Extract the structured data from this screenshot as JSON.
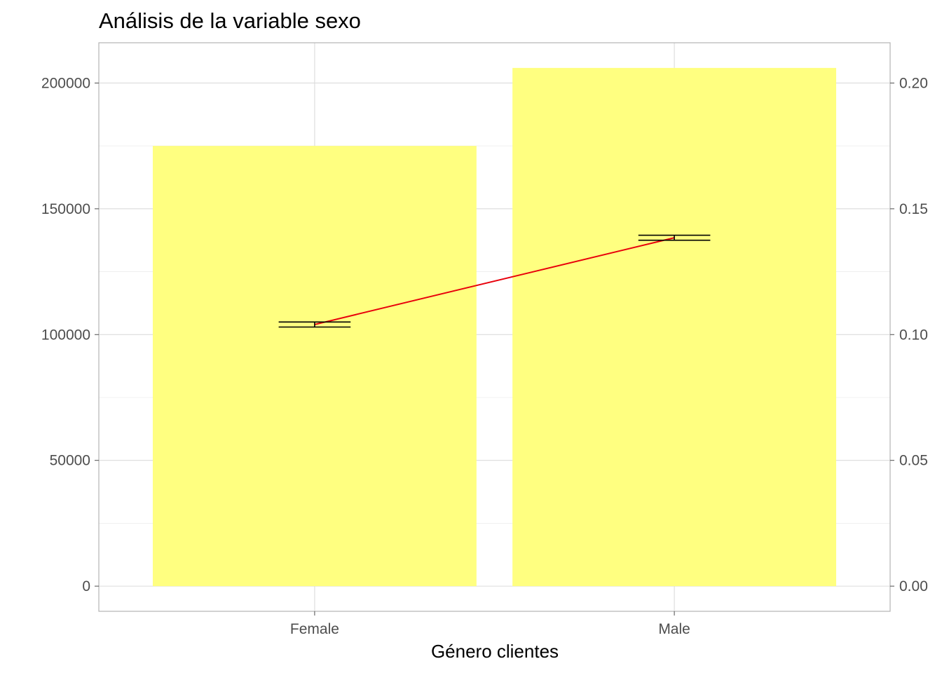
{
  "chart_data": {
    "type": "bar",
    "title": "Análisis de la variable sexo",
    "xlabel": "Género clientes",
    "ylabel": "",
    "categories": [
      "Female",
      "Male"
    ],
    "values": [
      175000,
      206000
    ],
    "ylim": [
      -10000,
      216000
    ],
    "yticks": [
      0,
      50000,
      100000,
      150000,
      200000
    ],
    "ytick_labels": [
      "0",
      "50000",
      "100000",
      "150000",
      "200000"
    ],
    "y2lim": [
      -0.01,
      0.216
    ],
    "y2ticks": [
      0,
      0.05,
      0.1,
      0.15,
      0.2
    ],
    "y2tick_labels": [
      "0.00",
      "0.05",
      "0.10",
      "0.15",
      "0.20"
    ],
    "line_series": {
      "axis": "secondary",
      "values": [
        0.104,
        0.1385
      ],
      "error_low": [
        0.103,
        0.1375
      ],
      "error_high": [
        0.105,
        0.1395
      ]
    },
    "colors": {
      "bar": "#ffff80",
      "line": "#e8000b",
      "errorbar": "#000000",
      "panel_border": "#b3b3b3"
    },
    "grid": true
  }
}
